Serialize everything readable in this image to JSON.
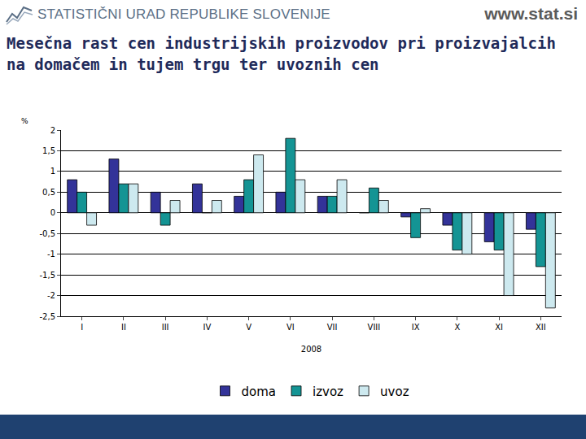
{
  "header": {
    "organization": "STATISTIČNI URAD REPUBLIKE SLOVENIJE",
    "url": "www.stat.si"
  },
  "chart_data": {
    "type": "bar",
    "title": "Mesečna rast cen industrijskih proizvodov pri proizvajalcih na domačem in tujem trgu ter uvoznih cen",
    "ylabel": "%",
    "xlabel": "2008",
    "categories": [
      "I",
      "II",
      "III",
      "IV",
      "V",
      "VI",
      "VII",
      "VIII",
      "IX",
      "X",
      "XI",
      "XII"
    ],
    "series": [
      {
        "name": "doma",
        "color": "#333399",
        "values": [
          0.8,
          1.3,
          0.5,
          0.7,
          0.4,
          0.5,
          0.4,
          0.0,
          -0.1,
          -0.3,
          -0.7,
          -0.4
        ]
      },
      {
        "name": "izvoz",
        "color": "#149494",
        "values": [
          0.5,
          0.7,
          -0.3,
          0.0,
          0.8,
          1.8,
          0.4,
          0.6,
          -0.6,
          -0.9,
          -0.9,
          -1.3
        ]
      },
      {
        "name": "uvoz",
        "color": "#cde9ef",
        "values": [
          -0.3,
          0.7,
          0.3,
          0.3,
          1.4,
          0.8,
          0.8,
          0.3,
          0.1,
          -1.0,
          -2.0,
          -2.3
        ]
      }
    ],
    "ylim": [
      -2.5,
      2
    ],
    "yticks": [
      {
        "value": -2.5,
        "label": "-2,5"
      },
      -2,
      {
        "value": -1.5,
        "label": "-1,5"
      },
      -1,
      {
        "value": -0.5,
        "label": "-0,5"
      },
      0,
      {
        "value": 0.5,
        "label": "0,5"
      },
      1,
      {
        "value": 1.5,
        "label": "1,5"
      },
      2
    ],
    "grid": true,
    "legend": "bottom"
  }
}
